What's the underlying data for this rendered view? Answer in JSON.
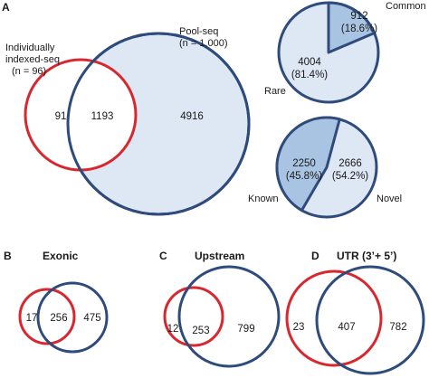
{
  "colors": {
    "individual_circle": "#d7282f",
    "pool_circle": "#2f4b7c",
    "pool_fill": "#dde8f4",
    "slice_highlight": "#a9c4e2",
    "slice_light": "#dde8f4",
    "text": "#1a1a1a"
  },
  "panel_a": {
    "letter": "A",
    "venn": {
      "individual_label_lines": [
        "Individually",
        "indexed-seq",
        "(n = 96)"
      ],
      "pool_label_lines": [
        "Pool-seq",
        "(n = 1,000)"
      ],
      "only_individual": "91",
      "overlap": "1193",
      "only_pool": "4916"
    },
    "pie_common_rare": {
      "common_label": "Common",
      "common_count": "912",
      "common_pct": "(18.6%)",
      "rare_label": "Rare",
      "rare_count": "4004",
      "rare_pct": "(81.4%)",
      "common_fraction": 0.186
    },
    "pie_known_novel": {
      "known_label": "Known",
      "known_count": "2250",
      "known_pct": "(45.8%)",
      "novel_label": "Novel",
      "novel_count": "2666",
      "novel_pct": "(54.2%)",
      "known_fraction": 0.458
    }
  },
  "panel_b": {
    "letter": "B",
    "title": "Exonic",
    "only_individual": "17",
    "overlap": "256",
    "only_pool": "475"
  },
  "panel_c": {
    "letter": "C",
    "title": "Upstream",
    "only_individual": "12",
    "overlap": "253",
    "only_pool": "799"
  },
  "panel_d": {
    "letter": "D",
    "title": "UTR (3’+ 5’)",
    "only_individual": "23",
    "overlap": "407",
    "only_pool": "782"
  }
}
